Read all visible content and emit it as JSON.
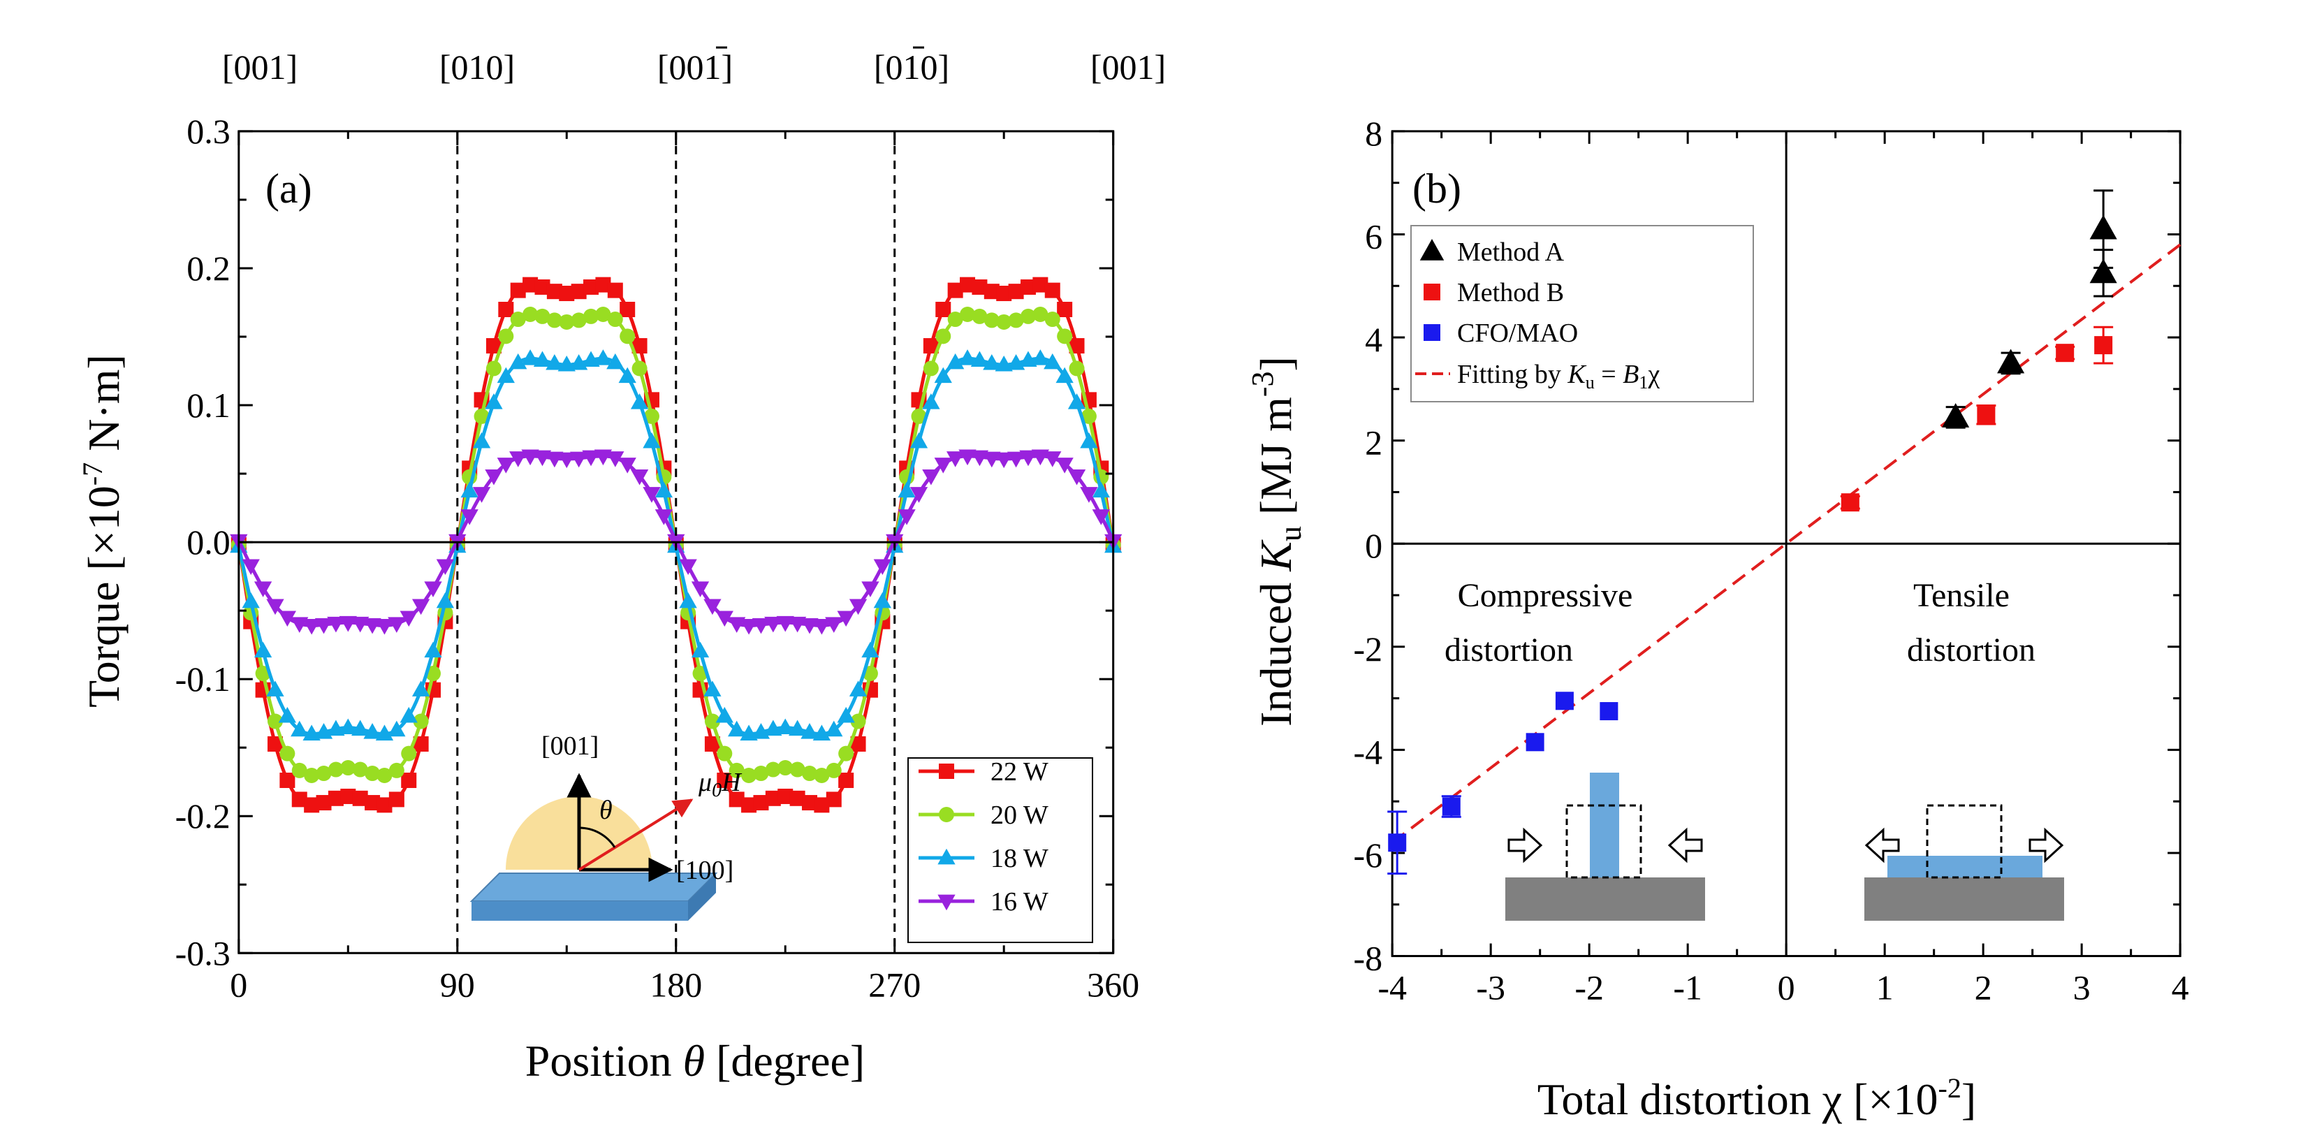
{
  "colors": {
    "red": "#ee1111",
    "green": "#99dd22",
    "cyan": "#11a8e8",
    "purple": "#9922dd",
    "black": "#000000",
    "blue": "#1a1aee",
    "fit": "#e01e1e",
    "substrate": "#808080",
    "film": "#6aa8dc",
    "cap": "#f8d98a"
  },
  "chart_data": [
    {
      "type": "line",
      "panel_label": "(a)",
      "xlabel": "Position θ [degree]",
      "xlabel_parts": [
        "Position ",
        "θ",
        " [degree]"
      ],
      "ylabel": "Torque [×10^-7 N·m]",
      "ylabel_parts": [
        "Torque [×10",
        "-7",
        " N·m]"
      ],
      "xlim": [
        0,
        360
      ],
      "ylim": [
        -0.3,
        0.3
      ],
      "x_ticks": [
        "0",
        "90",
        "180",
        "270",
        "360"
      ],
      "y_ticks": [
        "-0.3",
        "-0.2",
        "-0.1",
        "0.0",
        "0.1",
        "0.2",
        "0.3"
      ],
      "top_labels": [
        "[001]",
        "[010]",
        "[001]",
        "[010]",
        "[001]"
      ],
      "top_labels_overbar": [
        false,
        false,
        true,
        true,
        false
      ],
      "dashed_lines_at": [
        90,
        180,
        270
      ],
      "series": [
        {
          "name": "22 W",
          "marker": "square",
          "color": "red",
          "amplitude": 0.255,
          "center": -0.002
        },
        {
          "name": "20 W",
          "marker": "circle",
          "color": "green",
          "amplitude": 0.226,
          "center": -0.002
        },
        {
          "name": "18 W",
          "marker": "triangle-up",
          "color": "cyan",
          "amplitude": 0.184,
          "center": -0.003
        },
        {
          "name": "16 W",
          "marker": "triangle-down",
          "color": "purple",
          "amplitude": 0.083,
          "center": 0.001
        }
      ],
      "inset": {
        "axis_up": "[001]",
        "axis_right": "[100]",
        "angle": "θ",
        "field_symbol": "μ",
        "field_sub": "0",
        "field_var": "H"
      }
    },
    {
      "type": "scatter",
      "panel_label": "(b)",
      "xlabel": "Total distortion χ [×10^-2]",
      "xlabel_parts": [
        "Total distortion χ  [×10",
        "-2",
        "]"
      ],
      "ylabel": "Induced K_u [MJ m^-3]",
      "ylabel_parts": [
        "Induced ",
        "K",
        "u",
        " [MJ m",
        "-3",
        "]"
      ],
      "xlim": [
        -4,
        4
      ],
      "ylim": [
        -8,
        8
      ],
      "x_ticks": [
        "-4",
        "-3",
        "-2",
        "-1",
        "0",
        "1",
        "2",
        "3",
        "4"
      ],
      "y_ticks": [
        "-8",
        "-6",
        "-4",
        "-2",
        "0",
        "2",
        "4",
        "6",
        "8"
      ],
      "region_labels": [
        [
          "Compressive",
          "distortion"
        ],
        [
          "Tensile",
          "distortion"
        ]
      ],
      "fit": {
        "label": "Fitting by K_u = B_1χ",
        "label_parts": [
          "Fitting by ",
          "K",
          "u",
          " = ",
          "B",
          "1",
          "χ"
        ],
        "slope": 1.45
      },
      "series": [
        {
          "name": "Method A",
          "marker": "triangle-up",
          "color": "black",
          "points": [
            {
              "x": 1.72,
              "y": 2.45,
              "err": 0.2
            },
            {
              "x": 2.28,
              "y": 3.5,
              "err": 0.2
            },
            {
              "x": 3.22,
              "y": 5.25,
              "err": 0.45
            },
            {
              "x": 3.22,
              "y": 6.1,
              "err": 0.75
            }
          ]
        },
        {
          "name": "Method B",
          "marker": "square",
          "color": "red",
          "points": [
            {
              "x": 0.65,
              "y": 0.8,
              "err": 0.12
            },
            {
              "x": 2.03,
              "y": 2.5,
              "err": 0.18
            },
            {
              "x": 2.83,
              "y": 3.7,
              "err": 0.12
            },
            {
              "x": 3.22,
              "y": 3.85,
              "err": 0.35
            }
          ]
        },
        {
          "name": "CFO/MAO",
          "marker": "square",
          "color": "blue",
          "points": [
            {
              "x": -3.95,
              "y": -5.8,
              "err": 0.6
            },
            {
              "x": -3.4,
              "y": -5.1,
              "err": 0.2
            },
            {
              "x": -2.55,
              "y": -3.85,
              "err": 0
            },
            {
              "x": -2.25,
              "y": -3.05,
              "err": 0
            },
            {
              "x": -1.8,
              "y": -3.25,
              "err": 0
            }
          ]
        }
      ]
    }
  ]
}
